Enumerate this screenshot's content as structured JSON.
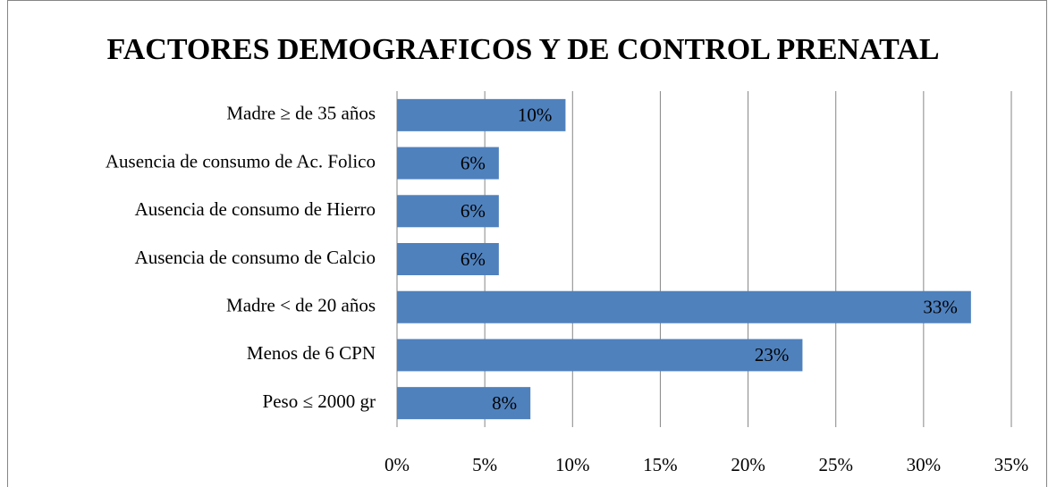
{
  "chart_data": {
    "type": "bar",
    "orientation": "horizontal",
    "title": "FACTORES DEMOGRAFICOS Y DE CONTROL PRENATAL",
    "categories": [
      "Madre ≥ de 35 años",
      "Ausencia de consumo de Ac. Folico",
      "Ausencia de consumo de Hierro",
      "Ausencia de consumo de Calcio",
      "Madre < de 20 años",
      "Menos de 6 CPN",
      "Peso ≤ 2000 gr"
    ],
    "values": [
      9.6,
      5.8,
      5.8,
      5.8,
      32.7,
      23.1,
      7.6
    ],
    "value_labels": [
      "10%",
      "6%",
      "6%",
      "6%",
      "33%",
      "23%",
      "8%"
    ],
    "color": "#4f81bd",
    "xlim": [
      0,
      35
    ],
    "xticks": [
      {
        "value": 0,
        "label": "0%"
      },
      {
        "value": 5,
        "label": "5%"
      },
      {
        "value": 10,
        "label": "10%"
      },
      {
        "value": 15,
        "label": "15%"
      },
      {
        "value": 20,
        "label": "20%"
      },
      {
        "value": 25,
        "label": "25%"
      },
      {
        "value": 30,
        "label": "30%"
      },
      {
        "value": 35,
        "label": "35%"
      }
    ],
    "grid": true
  }
}
